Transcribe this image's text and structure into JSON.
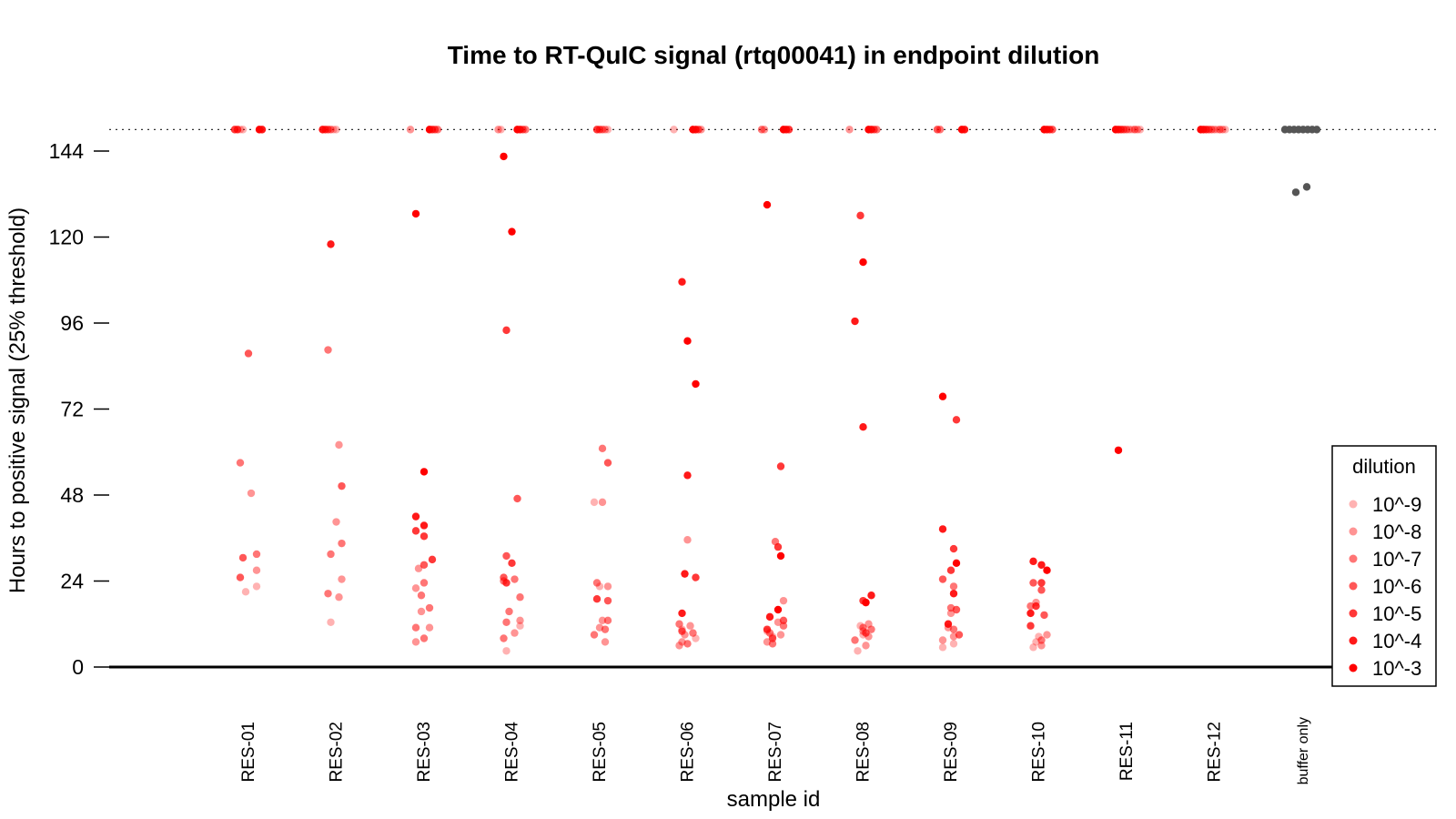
{
  "chart_data": {
    "type": "scatter",
    "title": "Time to RT-QuIC signal (rtq00041) in endpoint dilution",
    "xlabel": "sample id",
    "ylabel": "Hours to positive signal (25% threshold)",
    "ylim": [
      -12,
      160
    ],
    "yticks": [
      0,
      24,
      48,
      72,
      96,
      120,
      144
    ],
    "categories": [
      "RES-01",
      "RES-02",
      "RES-03",
      "RES-04",
      "RES-05",
      "RES-06",
      "RES-07",
      "RES-08",
      "RES-09",
      "RES-10",
      "RES-11",
      "RES-12",
      "buffer only"
    ],
    "censor_line": 150,
    "legend": {
      "title": "dilution",
      "position": "right",
      "entries": [
        {
          "label": "10^-9",
          "color": "#ff0000",
          "alpha": 0.3
        },
        {
          "label": "10^-8",
          "color": "#ff0000",
          "alpha": 0.42
        },
        {
          "label": "10^-7",
          "color": "#ff0000",
          "alpha": 0.54
        },
        {
          "label": "10^-6",
          "color": "#ff0000",
          "alpha": 0.66
        },
        {
          "label": "10^-5",
          "color": "#ff0000",
          "alpha": 0.78
        },
        {
          "label": "10^-4",
          "color": "#ff0000",
          "alpha": 0.9
        },
        {
          "label": "10^-3",
          "color": "#ff0000",
          "alpha": 1.0
        }
      ]
    },
    "buffer_color": "#555555",
    "points": {
      "RES-01": [
        [
          87.5,
          3
        ],
        [
          57,
          4
        ],
        [
          48.5,
          5
        ],
        [
          31.5,
          4
        ],
        [
          30.5,
          3
        ],
        [
          27,
          5
        ],
        [
          25,
          3
        ],
        [
          22.5,
          6
        ],
        [
          21,
          6
        ],
        [
          150,
          0
        ],
        [
          150,
          1
        ],
        [
          150,
          2
        ],
        [
          150,
          2
        ],
        [
          150,
          6
        ],
        [
          150,
          6
        ]
      ],
      "RES-02": [
        [
          118,
          1
        ],
        [
          88.5,
          4
        ],
        [
          62,
          5
        ],
        [
          50.5,
          3
        ],
        [
          40.5,
          5
        ],
        [
          34.5,
          4
        ],
        [
          31.5,
          4
        ],
        [
          24.5,
          5
        ],
        [
          20.5,
          4
        ],
        [
          19.5,
          5
        ],
        [
          12.5,
          6
        ],
        [
          150,
          1
        ],
        [
          150,
          2
        ],
        [
          150,
          3
        ],
        [
          150,
          4
        ],
        [
          150,
          6
        ],
        [
          150,
          6
        ]
      ],
      "RES-03": [
        [
          126.5,
          0
        ],
        [
          54.5,
          0
        ],
        [
          42,
          1
        ],
        [
          39.5,
          1
        ],
        [
          38,
          2
        ],
        [
          36.5,
          2
        ],
        [
          30,
          2
        ],
        [
          28.5,
          3
        ],
        [
          27.5,
          5
        ],
        [
          23.5,
          4
        ],
        [
          22,
          5
        ],
        [
          20,
          4
        ],
        [
          16.5,
          4
        ],
        [
          15.5,
          5
        ],
        [
          11,
          5
        ],
        [
          11,
          4
        ],
        [
          8,
          4
        ],
        [
          7,
          5
        ],
        [
          150,
          0
        ],
        [
          150,
          2
        ],
        [
          150,
          3
        ],
        [
          150,
          4
        ],
        [
          150,
          5
        ]
      ],
      "RES-04": [
        [
          142.5,
          0
        ],
        [
          121.5,
          0
        ],
        [
          94,
          2
        ],
        [
          47,
          3
        ],
        [
          31,
          3
        ],
        [
          29,
          2
        ],
        [
          25,
          3
        ],
        [
          24.5,
          4
        ],
        [
          24,
          4
        ],
        [
          23.5,
          2
        ],
        [
          19.5,
          4
        ],
        [
          15.5,
          4
        ],
        [
          13,
          5
        ],
        [
          12.5,
          4
        ],
        [
          11.5,
          6
        ],
        [
          8,
          4
        ],
        [
          9.5,
          5
        ],
        [
          4.5,
          6
        ],
        [
          150,
          0
        ],
        [
          150,
          1
        ],
        [
          150,
          3
        ],
        [
          150,
          4
        ],
        [
          150,
          5
        ],
        [
          150,
          6
        ]
      ],
      "RES-05": [
        [
          61,
          4
        ],
        [
          57,
          3
        ],
        [
          46,
          5
        ],
        [
          46,
          6
        ],
        [
          23.5,
          4
        ],
        [
          22.5,
          5
        ],
        [
          22.5,
          6
        ],
        [
          19,
          2
        ],
        [
          18.5,
          3
        ],
        [
          13,
          5
        ],
        [
          13,
          4
        ],
        [
          11,
          5
        ],
        [
          10.5,
          4
        ],
        [
          9,
          4
        ],
        [
          7,
          5
        ],
        [
          150,
          2
        ],
        [
          150,
          3
        ],
        [
          150,
          4
        ],
        [
          150,
          5
        ],
        [
          150,
          6
        ]
      ],
      "RES-06": [
        [
          107.5,
          1
        ],
        [
          91,
          0
        ],
        [
          79,
          0
        ],
        [
          53.5,
          1
        ],
        [
          35.5,
          5
        ],
        [
          26,
          1
        ],
        [
          25,
          2
        ],
        [
          15,
          1
        ],
        [
          12,
          4
        ],
        [
          11.5,
          5
        ],
        [
          10.5,
          6
        ],
        [
          10,
          3
        ],
        [
          9.5,
          4
        ],
        [
          9,
          5
        ],
        [
          8,
          6
        ],
        [
          7,
          5
        ],
        [
          6.5,
          4
        ],
        [
          6,
          5
        ],
        [
          150,
          0
        ],
        [
          150,
          1
        ],
        [
          150,
          3
        ],
        [
          150,
          5
        ],
        [
          150,
          6
        ]
      ],
      "RES-07": [
        [
          129,
          0
        ],
        [
          56,
          2
        ],
        [
          35,
          4
        ],
        [
          33.5,
          2
        ],
        [
          31,
          0
        ],
        [
          18.5,
          5
        ],
        [
          16,
          0
        ],
        [
          14,
          1
        ],
        [
          13,
          3
        ],
        [
          12.5,
          5
        ],
        [
          11.5,
          4
        ],
        [
          10.5,
          2
        ],
        [
          10,
          6
        ],
        [
          9.5,
          4
        ],
        [
          9,
          5
        ],
        [
          8.5,
          6
        ],
        [
          8,
          3
        ],
        [
          7,
          5
        ],
        [
          6.5,
          4
        ],
        [
          150,
          0
        ],
        [
          150,
          1
        ],
        [
          150,
          2
        ],
        [
          150,
          4
        ],
        [
          150,
          5
        ]
      ],
      "RES-08": [
        [
          126,
          2
        ],
        [
          113,
          0
        ],
        [
          96.5,
          1
        ],
        [
          67,
          1
        ],
        [
          20,
          1
        ],
        [
          18.5,
          2
        ],
        [
          18,
          0
        ],
        [
          12,
          5
        ],
        [
          11.5,
          6
        ],
        [
          11,
          4
        ],
        [
          10.5,
          4
        ],
        [
          10,
          5
        ],
        [
          9.5,
          3
        ],
        [
          9,
          6
        ],
        [
          8.5,
          5
        ],
        [
          7.5,
          4
        ],
        [
          6,
          5
        ],
        [
          4.5,
          6
        ],
        [
          150,
          0
        ],
        [
          150,
          1
        ],
        [
          150,
          3
        ],
        [
          150,
          4
        ],
        [
          150,
          5
        ]
      ],
      "RES-09": [
        [
          75.5,
          0
        ],
        [
          69,
          2
        ],
        [
          38.5,
          1
        ],
        [
          33,
          2
        ],
        [
          29,
          0
        ],
        [
          27,
          2
        ],
        [
          24.5,
          3
        ],
        [
          22.5,
          4
        ],
        [
          20.5,
          1
        ],
        [
          16.5,
          4
        ],
        [
          16,
          3
        ],
        [
          15,
          5
        ],
        [
          12,
          1
        ],
        [
          11,
          5
        ],
        [
          10.5,
          4
        ],
        [
          9,
          3
        ],
        [
          8.5,
          5
        ],
        [
          7.5,
          5
        ],
        [
          6.5,
          6
        ],
        [
          5.5,
          6
        ],
        [
          150,
          0
        ],
        [
          150,
          1
        ],
        [
          150,
          3
        ],
        [
          150,
          4
        ]
      ],
      "RES-10": [
        [
          29.5,
          1
        ],
        [
          28.5,
          1
        ],
        [
          27,
          0
        ],
        [
          23.5,
          2
        ],
        [
          23.5,
          3
        ],
        [
          21.5,
          3
        ],
        [
          18,
          5
        ],
        [
          17,
          2
        ],
        [
          17,
          4
        ],
        [
          15,
          1
        ],
        [
          14.5,
          3
        ],
        [
          11.5,
          2
        ],
        [
          9,
          5
        ],
        [
          8.5,
          6
        ],
        [
          7.5,
          4
        ],
        [
          7,
          6
        ],
        [
          6,
          5
        ],
        [
          5.5,
          6
        ],
        [
          150,
          0
        ],
        [
          150,
          1
        ],
        [
          150,
          2
        ],
        [
          150,
          3
        ]
      ],
      "RES-11": [
        [
          60.5,
          0
        ],
        [
          150,
          0
        ],
        [
          150,
          1
        ],
        [
          150,
          2
        ],
        [
          150,
          3
        ],
        [
          150,
          4
        ],
        [
          150,
          5
        ],
        [
          150,
          6
        ],
        [
          150,
          4
        ],
        [
          150,
          5
        ],
        [
          150,
          6
        ]
      ],
      "RES-12": [
        [
          150,
          0
        ],
        [
          150,
          1
        ],
        [
          150,
          2
        ],
        [
          150,
          3
        ],
        [
          150,
          4
        ],
        [
          150,
          5
        ],
        [
          150,
          6
        ],
        [
          150,
          4
        ],
        [
          150,
          5
        ],
        [
          150,
          6
        ]
      ],
      "buffer only": [
        [
          134,
          -1
        ],
        [
          132.5,
          -1
        ],
        [
          150,
          -1
        ],
        [
          150,
          -1
        ],
        [
          150,
          -1
        ],
        [
          150,
          -1
        ],
        [
          150,
          -1
        ],
        [
          150,
          -1
        ],
        [
          150,
          -1
        ],
        [
          150,
          -1
        ]
      ]
    }
  }
}
